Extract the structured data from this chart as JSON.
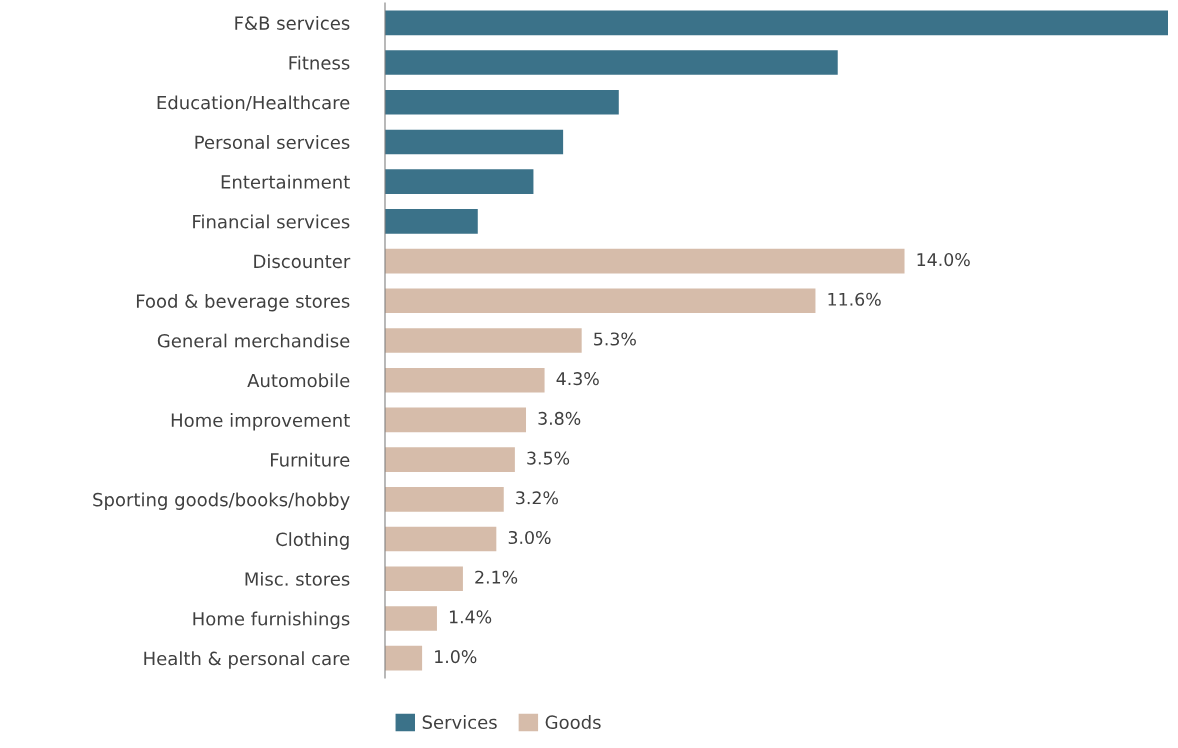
{
  "chart_data": {
    "type": "bar",
    "orientation": "horizontal",
    "legend": "bottom",
    "grid": false,
    "categories": [
      "F&B services",
      "Fitness",
      "Education/Healthcare",
      "Personal services",
      "Entertainment",
      "Financial services",
      "Discounter",
      "Food & beverage stores",
      "General merchandise",
      "Automobile",
      "Home improvement",
      "Furniture",
      "Sporting goods/books/hobby",
      "Clothing",
      "Misc. stores",
      "Home furnishings",
      "Health & personal care"
    ],
    "series": [
      {
        "name": "Services",
        "color": "#3b7289",
        "values": [
          21.1,
          12.2,
          6.3,
          4.8,
          4.0,
          2.5,
          null,
          null,
          null,
          null,
          null,
          null,
          null,
          null,
          null,
          null,
          null
        ],
        "value_labels": [
          null,
          null,
          null,
          null,
          null,
          null,
          null,
          null,
          null,
          null,
          null,
          null,
          null,
          null,
          null,
          null,
          null
        ]
      },
      {
        "name": "Goods",
        "color": "#d6bcaa",
        "values": [
          null,
          null,
          null,
          null,
          null,
          null,
          14.0,
          11.6,
          5.3,
          4.3,
          3.8,
          3.5,
          3.2,
          3.0,
          2.1,
          1.4,
          1.0
        ],
        "value_labels": [
          null,
          null,
          null,
          null,
          null,
          null,
          "14.0%",
          "11.6%",
          "5.3%",
          "4.3%",
          "3.8%",
          "3.5%",
          "3.2%",
          "3.0%",
          "2.1%",
          "1.4%",
          "1.0%"
        ]
      }
    ]
  }
}
